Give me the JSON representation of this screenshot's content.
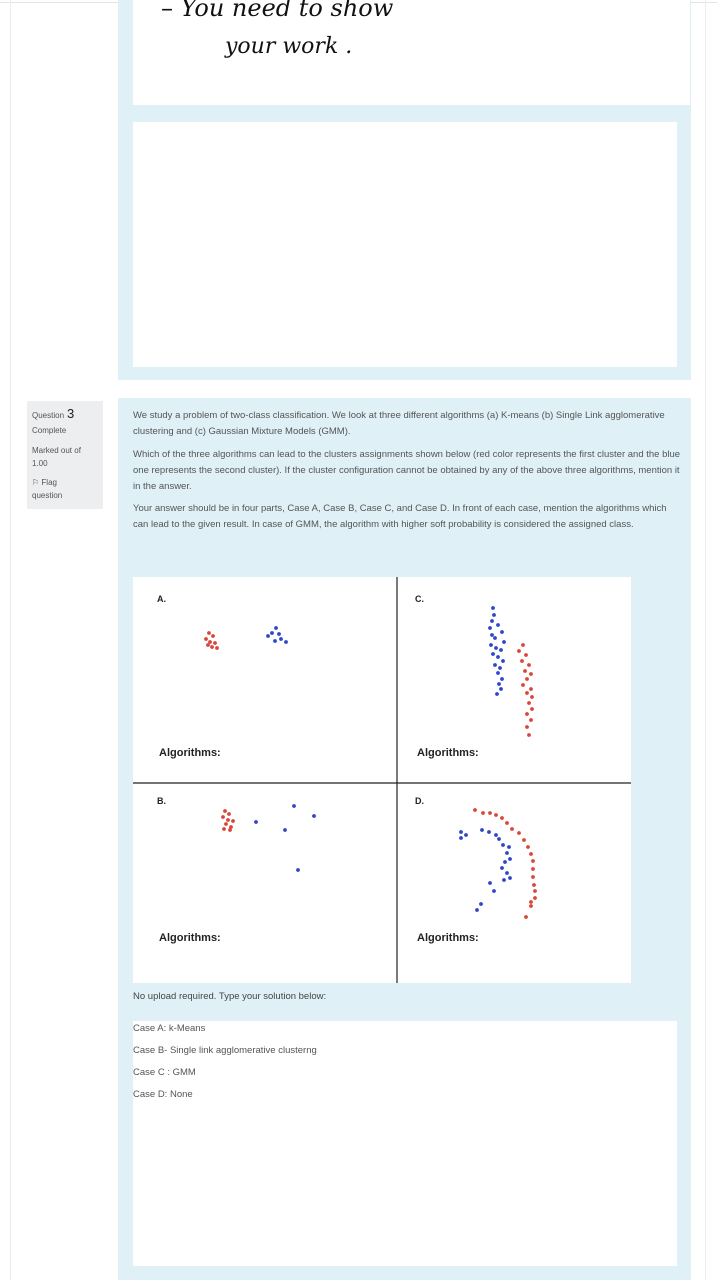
{
  "previous_answer": {
    "handwritten_line1": "– You need to show",
    "handwritten_line2": "your work ."
  },
  "question_info": {
    "label": "Question",
    "number": "3",
    "state": "Complete",
    "marked_out_of_label": "Marked out of",
    "marked_out_of_value": "1.00",
    "flag_label": "Flag",
    "flag_label_2": "question"
  },
  "question": {
    "paragraph1": "We study a problem of two-class classification. We look at three different algorithms (a) K-means (b) Single Link agglomerative clustering and (c) Gaussian Mixture Models (GMM).",
    "paragraph2": "Which of the three algorithms can lead to the clusters assignments shown below (red color represents the first cluster and the blue one represents the second cluster). If the cluster configuration cannot be obtained by any of the above three algorithms, mention it in the answer.",
    "paragraph3": "Your answer should be in four parts, Case A, Case B, Case C, and Case D. In front of each case, mention the algorithms which can lead to the given result. In case of GMM, the algorithm with higher soft probability is considered the assigned class."
  },
  "figure": {
    "colors": {
      "red": "#d9473a",
      "blue": "#2f46c7"
    },
    "panels": [
      {
        "case": "A.",
        "label": "Algorithms:"
      },
      {
        "case": "C.",
        "label": "Algorithms:"
      },
      {
        "case": "B.",
        "label": "Algorithms:"
      },
      {
        "case": "D.",
        "label": "Algorithms:"
      }
    ]
  },
  "response": {
    "prompt": "No upload required. Type your solution below:",
    "lines": [
      "Case A: k-Means",
      "Case B- Single link agglomerative clusterng",
      "Case C : GMM",
      "Case D: None"
    ]
  }
}
